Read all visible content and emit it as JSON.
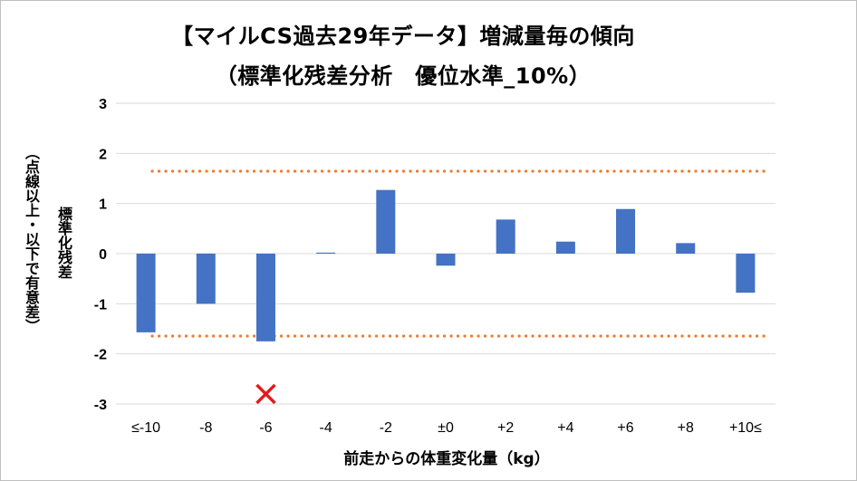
{
  "title_line1": "【マイルCS過去29年データ】増減量毎の傾向",
  "title_line2": "（標準化残差分析　優位水準_10%）",
  "y_axis_title_line1": "標準化残差",
  "y_axis_title_line2": "（点線以上・以下で有意差）",
  "x_axis_title": "前走からの体重変化量（kg）",
  "colors": {
    "bar": "#4472c4",
    "threshold": "#ed7d31",
    "marker": "#e31a1c",
    "grid": "#d9d9d9"
  },
  "chart_data": {
    "type": "bar",
    "categories": [
      "≤-10",
      "-8",
      "-6",
      "-4",
      "-2",
      "±0",
      "+2",
      "+4",
      "+6",
      "+8",
      "+10≤"
    ],
    "values": [
      -1.57,
      -1.0,
      -1.75,
      0.02,
      1.27,
      -0.24,
      0.68,
      0.24,
      0.89,
      0.21,
      -0.78
    ],
    "ylim": [
      -3,
      3
    ],
    "yticks": [
      "-3",
      "-2",
      "-1",
      "0",
      "1",
      "2",
      "3"
    ],
    "threshold_values": [
      1.645,
      -1.645
    ],
    "marked_category": "-6",
    "marker_value": -2.8,
    "grid": true
  }
}
